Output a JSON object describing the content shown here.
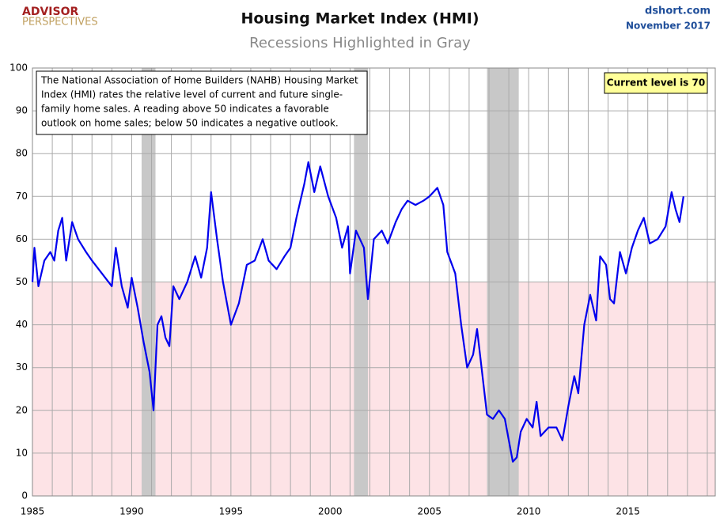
{
  "chart_data": {
    "type": "line",
    "title": "Housing Market Index (HMI)",
    "subtitle": "Recessions Highlighted in Gray",
    "logo": [
      "ADVISOR",
      "PERSPECTIVES"
    ],
    "source": "dshort.com",
    "date": "November 2017",
    "note": [
      "The National Association of Home Builders (NAHB) Housing Market",
      "Index (HMI) rates the relative level of current and future single-",
      "family home sales. A reading above 50 indicates a favorable",
      "outlook on home sales; below 50 indicates a negative outlook."
    ],
    "callout": "Current level is 70",
    "threshold": 50,
    "threshold_color": "#fde3e6",
    "recession_color": "#c8c8c8",
    "recessions": [
      [
        1990.5,
        1991.2
      ],
      [
        2001.2,
        2001.9
      ],
      [
        2007.9,
        2009.5
      ]
    ],
    "grid": true,
    "xlim": [
      1985,
      2019.4
    ],
    "xticks": [
      1985,
      1990,
      1995,
      2000,
      2005,
      2010,
      2015
    ],
    "xminor": [
      1986,
      1987,
      1988,
      1989,
      1991,
      1992,
      1993,
      1994,
      1996,
      1997,
      1998,
      1999,
      2001,
      2002,
      2003,
      2004,
      2006,
      2007,
      2008,
      2009,
      2011,
      2012,
      2013,
      2014,
      2016,
      2017,
      2018,
      2019
    ],
    "ylim": [
      0,
      100
    ],
    "yticks": [
      0,
      10,
      20,
      30,
      40,
      50,
      60,
      70,
      80,
      90,
      100
    ],
    "series": [
      {
        "name": "HMI",
        "color": "#0000ee",
        "x": [
          1985.0,
          1985.1,
          1985.3,
          1985.6,
          1985.9,
          1986.1,
          1986.3,
          1986.5,
          1986.7,
          1987.0,
          1987.3,
          1987.7,
          1988.0,
          1988.5,
          1989.0,
          1989.2,
          1989.5,
          1989.8,
          1990.0,
          1990.3,
          1990.6,
          1990.9,
          1991.1,
          1991.3,
          1991.5,
          1991.7,
          1991.9,
          1992.1,
          1992.4,
          1992.8,
          1993.2,
          1993.5,
          1993.8,
          1994.0,
          1994.3,
          1994.6,
          1995.0,
          1995.4,
          1995.8,
          1996.2,
          1996.6,
          1996.9,
          1997.3,
          1997.7,
          1998.0,
          1998.3,
          1998.7,
          1998.9,
          1999.2,
          1999.5,
          1999.9,
          2000.3,
          2000.6,
          2000.9,
          2001.0,
          2001.3,
          2001.7,
          2001.9,
          2002.2,
          2002.6,
          2002.9,
          2003.3,
          2003.6,
          2003.9,
          2004.3,
          2004.7,
          2005.0,
          2005.4,
          2005.7,
          2005.9,
          2006.3,
          2006.6,
          2006.9,
          2007.2,
          2007.4,
          2007.7,
          2007.9,
          2008.2,
          2008.5,
          2008.8,
          2009.0,
          2009.2,
          2009.4,
          2009.6,
          2009.9,
          2010.2,
          2010.4,
          2010.6,
          2011.0,
          2011.4,
          2011.7,
          2012.0,
          2012.3,
          2012.5,
          2012.8,
          2013.1,
          2013.4,
          2013.6,
          2013.9,
          2014.1,
          2014.3,
          2014.6,
          2014.9,
          2015.2,
          2015.5,
          2015.8,
          2016.1,
          2016.5,
          2016.9,
          2017.2,
          2017.4,
          2017.6,
          2017.8
        ],
        "values": [
          50,
          58,
          49,
          55,
          57,
          55,
          62,
          65,
          55,
          64,
          60,
          57,
          55,
          52,
          49,
          58,
          49,
          44,
          51,
          44,
          36,
          29,
          20,
          40,
          42,
          37,
          35,
          49,
          46,
          50,
          56,
          51,
          58,
          71,
          60,
          50,
          40,
          45,
          54,
          55,
          60,
          55,
          53,
          56,
          58,
          65,
          73,
          78,
          71,
          77,
          70,
          65,
          58,
          63,
          52,
          62,
          58,
          46,
          60,
          62,
          59,
          64,
          67,
          69,
          68,
          69,
          70,
          72,
          68,
          57,
          52,
          40,
          30,
          33,
          39,
          27,
          19,
          18,
          20,
          18,
          13,
          8,
          9,
          15,
          18,
          16,
          22,
          14,
          16,
          16,
          13,
          21,
          28,
          24,
          40,
          47,
          41,
          56,
          54,
          46,
          45,
          57,
          52,
          58,
          62,
          65,
          59,
          60,
          63,
          71,
          67,
          64,
          70
        ]
      }
    ]
  }
}
